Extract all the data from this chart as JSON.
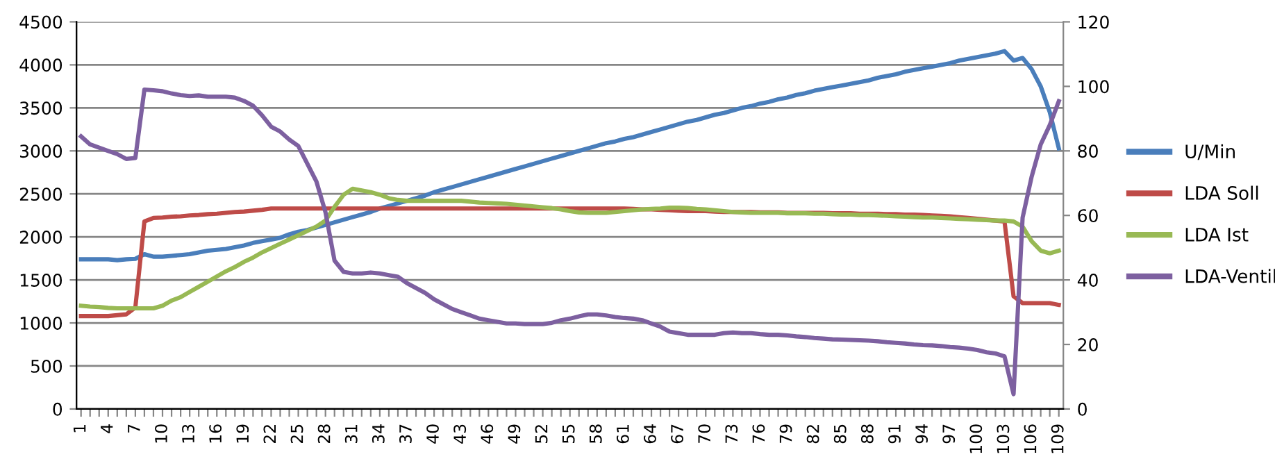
{
  "chart_data": {
    "type": "line",
    "categories": [
      "1",
      null,
      null,
      "4",
      null,
      null,
      "7",
      null,
      null,
      "10",
      null,
      null,
      "13",
      null,
      null,
      "16",
      null,
      null,
      "19",
      null,
      null,
      "22",
      null,
      null,
      "25",
      null,
      null,
      "28",
      null,
      null,
      "31",
      null,
      null,
      "34",
      null,
      null,
      "37",
      null,
      null,
      "40",
      null,
      null,
      "43",
      null,
      null,
      "46",
      null,
      null,
      "49",
      null,
      null,
      "52",
      null,
      null,
      "55",
      null,
      null,
      "58",
      null,
      null,
      "61",
      null,
      null,
      "64",
      null,
      null,
      "67",
      null,
      null,
      "70",
      null,
      null,
      "73",
      null,
      null,
      "76",
      null,
      null,
      "79",
      null,
      null,
      "82",
      null,
      null,
      "85",
      null,
      null,
      "88",
      null,
      null,
      "91",
      null,
      null,
      "94",
      null,
      null,
      "97",
      null,
      null,
      "100",
      null,
      null,
      "103",
      null,
      null,
      "106",
      null,
      null,
      "109"
    ],
    "series": [
      {
        "name": "U/Min",
        "color": "#4a7ebb",
        "values": [
          1740,
          1740,
          1740,
          1740,
          1730,
          1740,
          1745,
          1800,
          1770,
          1770,
          1780,
          1790,
          1800,
          1820,
          1840,
          1850,
          1860,
          1880,
          1900,
          1930,
          1950,
          1970,
          1990,
          2030,
          2060,
          2080,
          2110,
          2140,
          2170,
          2200,
          2230,
          2260,
          2290,
          2330,
          2360,
          2390,
          2420,
          2450,
          2480,
          2520,
          2550,
          2580,
          2610,
          2640,
          2670,
          2700,
          2730,
          2760,
          2790,
          2820,
          2850,
          2880,
          2910,
          2940,
          2970,
          3000,
          3030,
          3060,
          3090,
          3110,
          3140,
          3160,
          3190,
          3220,
          3250,
          3280,
          3310,
          3340,
          3360,
          3390,
          3420,
          3440,
          3470,
          3500,
          3520,
          3550,
          3570,
          3600,
          3620,
          3650,
          3670,
          3700,
          3720,
          3740,
          3760,
          3780,
          3800,
          3820,
          3850,
          3870,
          3890,
          3920,
          3940,
          3960,
          3980,
          4000,
          4020,
          4050,
          4070,
          4090,
          4110,
          4130,
          4160,
          4050,
          4080,
          3950,
          3750,
          3450,
          3030
        ]
      },
      {
        "name": "LDA Soll",
        "color": "#be4b48",
        "values": [
          1080,
          1080,
          1080,
          1080,
          1090,
          1100,
          1180,
          2180,
          2220,
          2225,
          2235,
          2240,
          2250,
          2255,
          2265,
          2270,
          2280,
          2290,
          2295,
          2305,
          2315,
          2330,
          2330,
          2330,
          2330,
          2330,
          2330,
          2330,
          2330,
          2330,
          2330,
          2330,
          2330,
          2330,
          2330,
          2330,
          2330,
          2330,
          2330,
          2330,
          2330,
          2330,
          2330,
          2330,
          2330,
          2330,
          2330,
          2330,
          2330,
          2330,
          2330,
          2330,
          2330,
          2330,
          2330,
          2330,
          2330,
          2330,
          2330,
          2330,
          2330,
          2325,
          2320,
          2320,
          2315,
          2310,
          2305,
          2300,
          2300,
          2300,
          2295,
          2290,
          2290,
          2290,
          2290,
          2285,
          2285,
          2285,
          2280,
          2280,
          2280,
          2280,
          2280,
          2275,
          2275,
          2275,
          2270,
          2270,
          2270,
          2265,
          2265,
          2260,
          2260,
          2255,
          2250,
          2245,
          2240,
          2230,
          2220,
          2210,
          2200,
          2190,
          2180,
          1310,
          1230,
          1230,
          1230,
          1230,
          1210
        ]
      },
      {
        "name": "LDA Ist",
        "color": "#98b954",
        "values": [
          1200,
          1190,
          1185,
          1175,
          1170,
          1170,
          1170,
          1170,
          1170,
          1200,
          1260,
          1300,
          1360,
          1420,
          1480,
          1540,
          1600,
          1650,
          1710,
          1760,
          1820,
          1870,
          1920,
          1970,
          2020,
          2070,
          2120,
          2190,
          2350,
          2490,
          2560,
          2540,
          2520,
          2490,
          2450,
          2430,
          2420,
          2420,
          2420,
          2420,
          2420,
          2420,
          2420,
          2410,
          2400,
          2395,
          2390,
          2385,
          2375,
          2365,
          2355,
          2345,
          2335,
          2320,
          2300,
          2285,
          2280,
          2280,
          2280,
          2290,
          2300,
          2310,
          2320,
          2325,
          2330,
          2340,
          2340,
          2335,
          2325,
          2320,
          2310,
          2300,
          2290,
          2285,
          2280,
          2280,
          2280,
          2280,
          2275,
          2275,
          2275,
          2270,
          2270,
          2265,
          2260,
          2260,
          2255,
          2255,
          2250,
          2245,
          2240,
          2235,
          2230,
          2225,
          2225,
          2220,
          2215,
          2210,
          2205,
          2200,
          2195,
          2190,
          2190,
          2180,
          2120,
          1950,
          1840,
          1810,
          1840
        ]
      },
      {
        "name": "LDA-Ventil",
        "color": "#7d60a0",
        "axis": "y2",
        "values": [
          84.5,
          82,
          81,
          80,
          79,
          77.5,
          77.8,
          99,
          98.8,
          98.5,
          97.8,
          97.3,
          97,
          97.2,
          96.8,
          96.8,
          96.8,
          96.5,
          95.5,
          94,
          91,
          87.5,
          86,
          83.5,
          81.5,
          76,
          70.5,
          61,
          46,
          42.5,
          42,
          42,
          42.3,
          42,
          41.5,
          41,
          39,
          37.5,
          36,
          34,
          32.5,
          31,
          30,
          29,
          28,
          27.5,
          27,
          26.5,
          26.5,
          26.3,
          26.3,
          26.3,
          26.7,
          27.5,
          28,
          28.7,
          29.3,
          29.3,
          29,
          28.5,
          28.2,
          28,
          27.5,
          26.5,
          25.5,
          24,
          23.5,
          23,
          23,
          23,
          23,
          23.5,
          23.7,
          23.5,
          23.5,
          23.2,
          23,
          23,
          22.8,
          22.5,
          22.3,
          22,
          21.8,
          21.6,
          21.5,
          21.4,
          21.3,
          21.2,
          21,
          20.7,
          20.5,
          20.3,
          20,
          19.8,
          19.7,
          19.5,
          19.2,
          19,
          18.7,
          18.3,
          17.6,
          17.2,
          16.3,
          4.6,
          59.3,
          72,
          82,
          88,
          95.4
        ]
      }
    ],
    "ylim": [
      0,
      4500
    ],
    "yticks": [
      0,
      500,
      1000,
      1500,
      2000,
      2500,
      3000,
      3500,
      4000,
      4500
    ],
    "y2lim": [
      0,
      120
    ],
    "y2ticks": [
      0,
      20,
      40,
      60,
      80,
      100,
      120
    ],
    "grid": "y",
    "legend": "right",
    "marker": "none",
    "line_style": "solid"
  }
}
